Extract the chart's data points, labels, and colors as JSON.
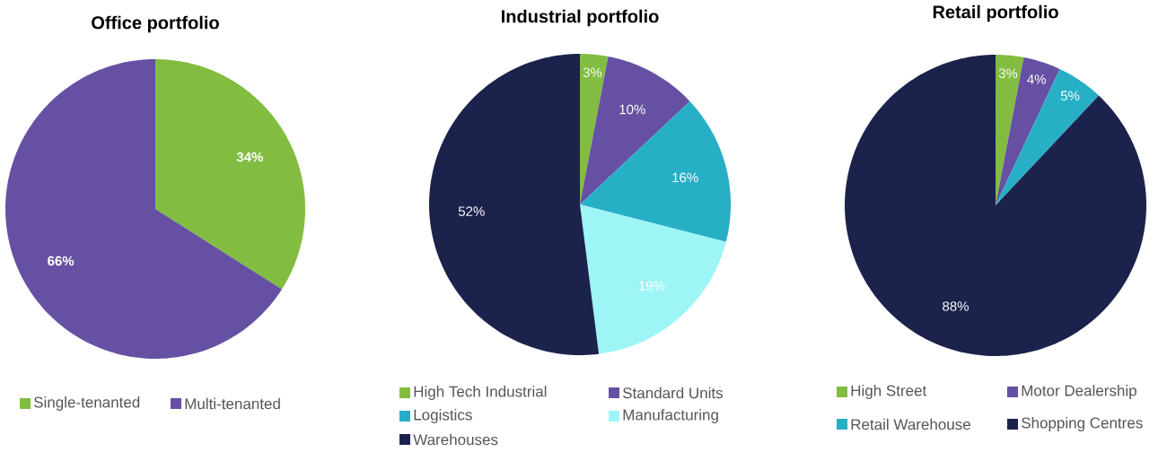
{
  "chart_data": [
    {
      "type": "pie",
      "title": "Office portfolio",
      "categories": [
        "Single-tenanted",
        "Multi-tenanted"
      ],
      "values": [
        34,
        66
      ],
      "colors": [
        "#82bc41",
        "#6650a3"
      ],
      "value_labels": [
        "34%",
        "66%"
      ],
      "legend": "bottom"
    },
    {
      "type": "pie",
      "title": "Industrial portfolio",
      "categories": [
        "High Tech Industrial",
        "Standard Units",
        "Logistics",
        "Manufacturing",
        "Warehouses"
      ],
      "values": [
        3,
        10,
        16,
        19,
        52
      ],
      "colors": [
        "#82bc41",
        "#6650a3",
        "#27afc6",
        "#9ef5f5",
        "#1b224b"
      ],
      "value_labels": [
        "3%",
        "10%",
        "16%",
        "19%",
        "52%"
      ],
      "legend": "bottom"
    },
    {
      "type": "pie",
      "title": "Retail portfolio",
      "categories": [
        "High Street",
        "Motor Dealership",
        "Retail Warehouse",
        "Shopping Centres"
      ],
      "values": [
        3,
        4,
        5,
        88
      ],
      "colors": [
        "#82bc41",
        "#6650a3",
        "#27afc6",
        "#1b224b"
      ],
      "value_labels": [
        "3%",
        "4%",
        "5%",
        "88%"
      ],
      "legend": "bottom"
    }
  ]
}
